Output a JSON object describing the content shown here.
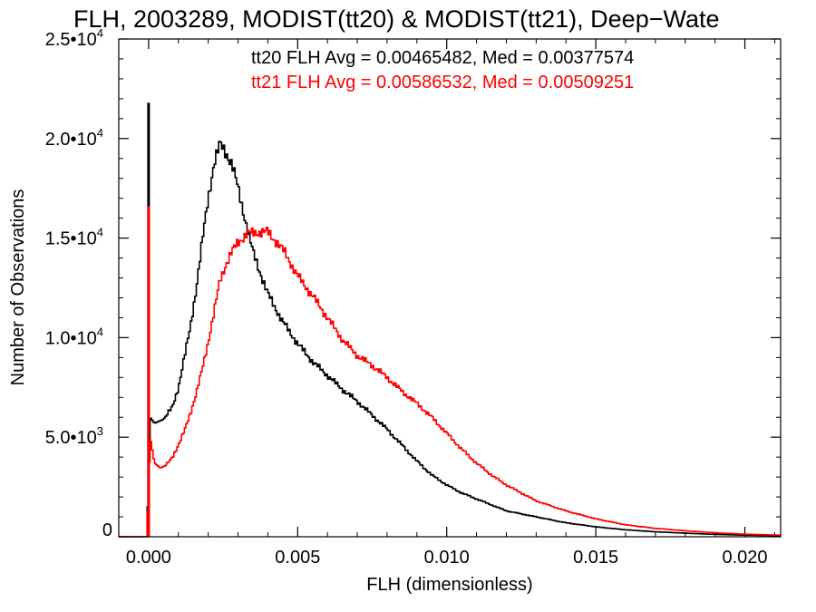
{
  "chart_data": {
    "type": "line",
    "title": "FLH, 2003289, MODIST(tt20) & MODIST(tt21), Deep−Wate",
    "xlabel": "FLH (dimensionless)",
    "ylabel": "Number of Observations",
    "xlim": [
      -0.001,
      0.0212
    ],
    "ylim": [
      0,
      25000
    ],
    "x_ticks": [
      {
        "value": 0.0,
        "label": "0.000"
      },
      {
        "value": 0.005,
        "label": "0.005"
      },
      {
        "value": 0.01,
        "label": "0.010"
      },
      {
        "value": 0.015,
        "label": "0.015"
      },
      {
        "value": 0.02,
        "label": "0.020"
      }
    ],
    "y_ticks": [
      {
        "value": 0,
        "mant": "0",
        "exp": ""
      },
      {
        "value": 5000,
        "mant": "5.0•10",
        "exp": "3"
      },
      {
        "value": 10000,
        "mant": "1.0•10",
        "exp": "4"
      },
      {
        "value": 15000,
        "mant": "1.5•10",
        "exp": "4"
      },
      {
        "value": 20000,
        "mant": "2.0•10",
        "exp": "4"
      },
      {
        "value": 25000,
        "mant": "2.5•10",
        "exp": "4"
      }
    ],
    "annotations": [
      {
        "text": "tt20 FLH Avg = 0.00465482, Med = 0.00377574",
        "color": "#000000"
      },
      {
        "text": "tt21 FLH Avg = 0.00586532, Med = 0.00509251",
        "color": "#ff0000"
      }
    ],
    "series": [
      {
        "color": "#000000",
        "spike": {
          "x": 0.0,
          "y": 21800
        },
        "points": [
          [
            -0.001,
            0
          ],
          [
            -5e-05,
            0
          ],
          [
            5e-05,
            6000
          ],
          [
            0.0002,
            5700
          ],
          [
            0.0005,
            5900
          ],
          [
            0.0008,
            6500
          ],
          [
            0.001,
            7500
          ],
          [
            0.0012,
            9000
          ],
          [
            0.0014,
            10500
          ],
          [
            0.0016,
            12500
          ],
          [
            0.0018,
            14800
          ],
          [
            0.002,
            17000
          ],
          [
            0.0022,
            18800
          ],
          [
            0.0024,
            19700
          ],
          [
            0.0026,
            19300
          ],
          [
            0.0028,
            18700
          ],
          [
            0.003,
            17500
          ],
          [
            0.0032,
            16200
          ],
          [
            0.0035,
            14300
          ],
          [
            0.004,
            12200
          ],
          [
            0.0045,
            10800
          ],
          [
            0.005,
            9700
          ],
          [
            0.0055,
            8800
          ],
          [
            0.006,
            8100
          ],
          [
            0.0065,
            7400
          ],
          [
            0.007,
            6800
          ],
          [
            0.0075,
            6100
          ],
          [
            0.008,
            5400
          ],
          [
            0.0085,
            4600
          ],
          [
            0.009,
            3800
          ],
          [
            0.0095,
            3100
          ],
          [
            0.01,
            2600
          ],
          [
            0.0105,
            2200
          ],
          [
            0.011,
            1900
          ],
          [
            0.0115,
            1600
          ],
          [
            0.012,
            1300
          ],
          [
            0.013,
            1000
          ],
          [
            0.014,
            700
          ],
          [
            0.015,
            500
          ],
          [
            0.016,
            350
          ],
          [
            0.017,
            250
          ],
          [
            0.018,
            180
          ],
          [
            0.019,
            120
          ],
          [
            0.02,
            80
          ],
          [
            0.0212,
            50
          ]
        ]
      },
      {
        "color": "#ff0000",
        "spike": {
          "x": 0.0,
          "y": 16600
        },
        "points": [
          [
            -0.001,
            0
          ],
          [
            -5e-05,
            0
          ],
          [
            5e-05,
            5000
          ],
          [
            0.0002,
            3700
          ],
          [
            0.0004,
            3450
          ],
          [
            0.0006,
            3600
          ],
          [
            0.0008,
            4000
          ],
          [
            0.001,
            4600
          ],
          [
            0.0012,
            5300
          ],
          [
            0.0014,
            6200
          ],
          [
            0.0016,
            7200
          ],
          [
            0.0018,
            8400
          ],
          [
            0.002,
            9800
          ],
          [
            0.0022,
            11300
          ],
          [
            0.0024,
            12900
          ],
          [
            0.0026,
            13700
          ],
          [
            0.0028,
            14300
          ],
          [
            0.003,
            14800
          ],
          [
            0.0033,
            15200
          ],
          [
            0.0036,
            15300
          ],
          [
            0.004,
            15300
          ],
          [
            0.0043,
            14800
          ],
          [
            0.0046,
            14200
          ],
          [
            0.005,
            13100
          ],
          [
            0.0055,
            12100
          ],
          [
            0.006,
            11000
          ],
          [
            0.0065,
            9900
          ],
          [
            0.007,
            9100
          ],
          [
            0.0075,
            8600
          ],
          [
            0.008,
            8000
          ],
          [
            0.0085,
            7300
          ],
          [
            0.009,
            6700
          ],
          [
            0.0095,
            6000
          ],
          [
            0.01,
            5200
          ],
          [
            0.0105,
            4400
          ],
          [
            0.011,
            3700
          ],
          [
            0.0115,
            3100
          ],
          [
            0.012,
            2600
          ],
          [
            0.0125,
            2200
          ],
          [
            0.013,
            1800
          ],
          [
            0.014,
            1300
          ],
          [
            0.015,
            900
          ],
          [
            0.016,
            600
          ],
          [
            0.017,
            420
          ],
          [
            0.018,
            300
          ],
          [
            0.019,
            200
          ],
          [
            0.02,
            130
          ],
          [
            0.0212,
            80
          ]
        ]
      }
    ]
  }
}
